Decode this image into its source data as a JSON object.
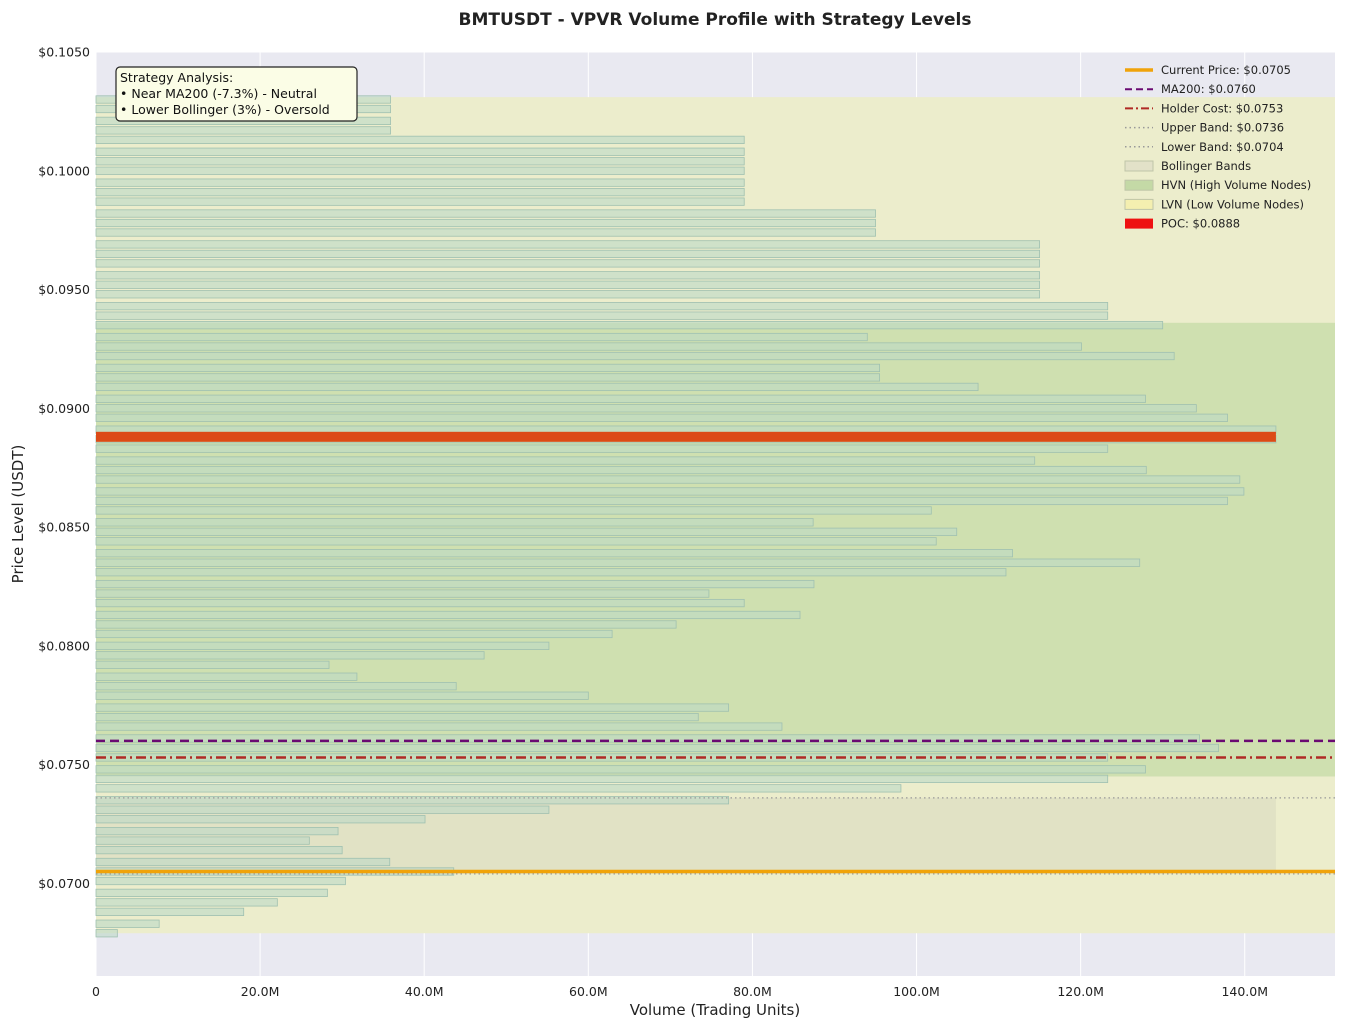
{
  "chart_data": {
    "type": "bar",
    "orientation": "horizontal",
    "title": "BMTUSDT - VPVR Volume Profile with Strategy Levels",
    "xlabel": "Volume (Trading Units)",
    "ylabel": "Price Level (USDT)",
    "xlim": [
      0,
      151000000
    ],
    "ylim": [
      0.0661,
      0.105
    ],
    "x_ticks": [
      0,
      20000000,
      40000000,
      60000000,
      80000000,
      100000000,
      120000000,
      140000000
    ],
    "x_tick_labels": [
      "0",
      "20.0M",
      "40.0M",
      "60.0M",
      "80.0M",
      "100.0M",
      "120.0M",
      "140.0M"
    ],
    "y_ticks": [
      0.07,
      0.075,
      0.08,
      0.085,
      0.09,
      0.095,
      0.1,
      0.105
    ],
    "y_tick_labels": [
      "$0.0700",
      "$0.0750",
      "$0.0800",
      "$0.0850",
      "$0.0900",
      "$0.0950",
      "$0.1000",
      "$0.1050"
    ],
    "grid": true,
    "legend_position": "top-right",
    "price_levels": [
      0.0679,
      0.0683,
      0.0688,
      0.0692,
      0.0696,
      0.0701,
      0.0705,
      0.0709,
      0.0714,
      0.0718,
      0.0722,
      0.0727,
      0.0731,
      0.0735,
      0.074,
      0.0744,
      0.0748,
      0.0753,
      0.0757,
      0.0761,
      0.0766,
      0.077,
      0.0774,
      0.0779,
      0.0783,
      0.0787,
      0.0792,
      0.0796,
      0.08,
      0.0805,
      0.0809,
      0.0813,
      0.0818,
      0.0822,
      0.0826,
      0.0831,
      0.0835,
      0.0839,
      0.0844,
      0.0848,
      0.0852,
      0.0857,
      0.0861,
      0.0865,
      0.087,
      0.0874,
      0.0878,
      0.0883,
      0.0887,
      0.0891,
      0.0896,
      0.09,
      0.0904,
      0.0909,
      0.0913,
      0.0917,
      0.0922,
      0.0926,
      0.093,
      0.0935,
      0.0939,
      0.0943,
      0.0948,
      0.0952,
      0.0956,
      0.0961,
      0.0965,
      0.0969,
      0.0974,
      0.0978,
      0.0982,
      0.0987,
      0.0991,
      0.0995,
      0.1,
      0.1004,
      0.1008,
      0.1013,
      0.1017,
      0.1021,
      0.1026,
      0.103
    ],
    "volumes": [
      2600000,
      7700000,
      18000000,
      22100000,
      28200000,
      30400000,
      43600000,
      35800000,
      30000000,
      26000000,
      29500000,
      40100000,
      55200000,
      77100000,
      98100000,
      123300000,
      127900000,
      123300000,
      136800000,
      134500000,
      83600000,
      73400000,
      77100000,
      60000000,
      43900000,
      31800000,
      28400000,
      47300000,
      55200000,
      62900000,
      70700000,
      85800000,
      79000000,
      74700000,
      87500000,
      110900000,
      127200000,
      111700000,
      102400000,
      104900000,
      87400000,
      101800000,
      137900000,
      139900000,
      139400000,
      128000000,
      114400000,
      123300000,
      143800000,
      143800000,
      137900000,
      134100000,
      127900000,
      107500000,
      95500000,
      95500000,
      131400000,
      120100000,
      94000000,
      130000000,
      123300000,
      123300000,
      115000000,
      115000000,
      115000000,
      115000000,
      115000000,
      115000000,
      95000000,
      95000000,
      95000000,
      79000000,
      79000000,
      79000000,
      79000000,
      79000000,
      79000000,
      79000000,
      35900000,
      35900000,
      35900000,
      35900000
    ],
    "poc": {
      "price": 0.0888,
      "volume": 143800000
    },
    "zones": {
      "lvn": [
        0.0679,
        0.1031
      ],
      "hvn": [
        0.0745,
        0.0936
      ],
      "bollinger": [
        0.0704,
        0.0736
      ]
    },
    "levels": {
      "current_price": 0.0705,
      "ma200": 0.076,
      "holder_cost": 0.0753,
      "upper_band": 0.0736,
      "lower_band": 0.0704
    },
    "legend": [
      {
        "key": "current",
        "label": "Current Price: $0.0705",
        "style": "line-solid-thick",
        "color": "#f0a30a"
      },
      {
        "key": "ma200",
        "label": "MA200: $0.0760",
        "style": "line-dash",
        "color": "#6a0a72"
      },
      {
        "key": "holder",
        "label": "Holder Cost: $0.0753",
        "style": "line-dashdot",
        "color": "#b02a25"
      },
      {
        "key": "upper",
        "label": "Upper Band: $0.0736",
        "style": "line-dot",
        "color": "#999999"
      },
      {
        "key": "lower",
        "label": "Lower Band: $0.0704",
        "style": "line-dot",
        "color": "#999999"
      },
      {
        "key": "boll",
        "label": "Bollinger Bands",
        "style": "patch",
        "color": "#e2e1c8"
      },
      {
        "key": "hvn",
        "label": "HVN (High Volume Nodes)",
        "style": "patch",
        "color": "#c4d9a6"
      },
      {
        "key": "lvn",
        "label": "LVN (Low Volume Nodes)",
        "style": "patch",
        "color": "#f4efb0"
      },
      {
        "key": "poc",
        "label": "POC: $0.0888",
        "style": "patch",
        "color": "#ee1111"
      }
    ],
    "annotation": {
      "lines": [
        "Strategy Analysis:",
        "• Near MA200 (-7.3%) - Neutral",
        "• Lower Bollinger (3%) - Oversold"
      ]
    },
    "colors": {
      "background": "#e9e9f1",
      "lvn_zone": "#ecedcc",
      "hvn_zone": "#cfe0b0",
      "bollinger_zone": "#e1e2c5",
      "bar_fill": "#bcd9c6",
      "bar_stroke": "#9fc0b0",
      "poc_bar": "#dc4a16",
      "current_price": "#f0a30a",
      "ma200": "#6a0a72",
      "holder_cost": "#b02a25",
      "bands": "#999999"
    }
  }
}
